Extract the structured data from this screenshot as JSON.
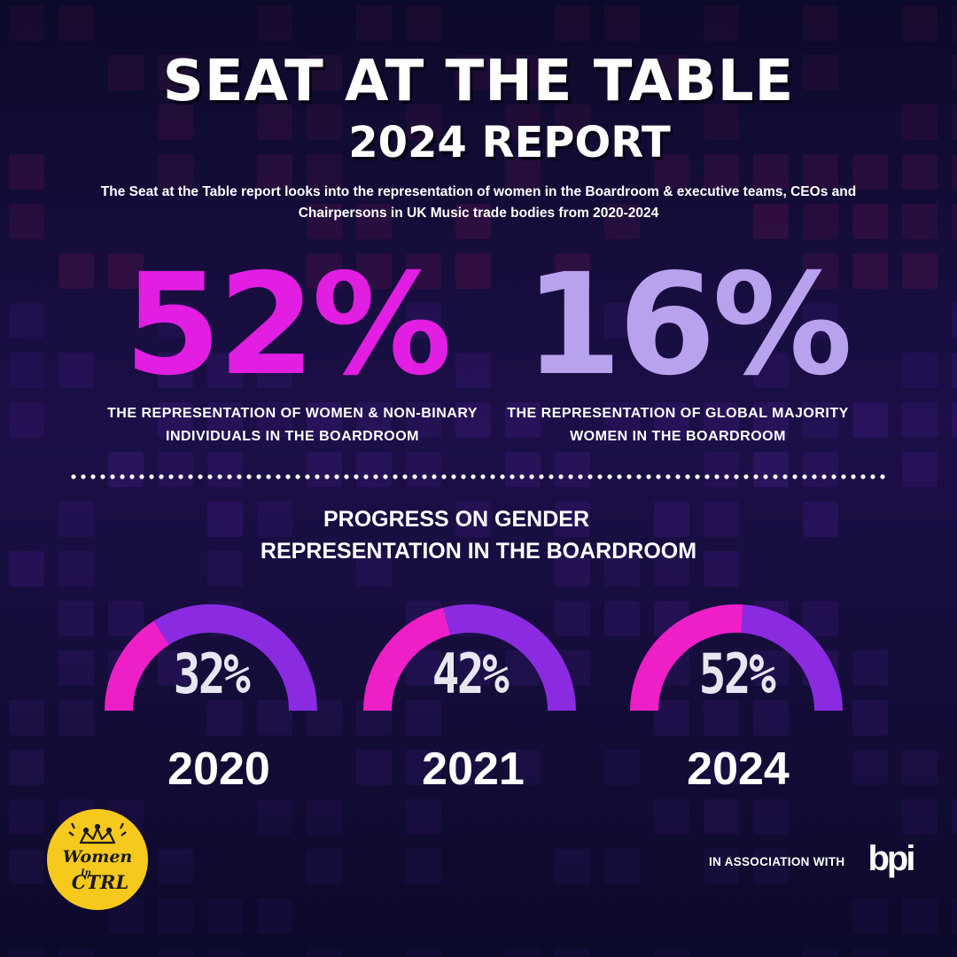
{
  "header": {
    "title": "SEAT AT THE TABLE",
    "subtitle": "2024 REPORT",
    "intro": "The Seat at the Table report looks into the representation of women in the Boardroom & executive teams, CEOs and Chairpersons in UK Music trade bodies from 2020-2024"
  },
  "stats": [
    {
      "value": "52%",
      "caption": "THE REPRESENTATION OF  WOMEN & NON-BINARY INDIVIDUALS IN THE BOARDROOM",
      "color": "#e11ee1"
    },
    {
      "value": "16%",
      "caption": "THE REPRESENTATION OF GLOBAL MAJORITY WOMEN IN THE BOARDROOM",
      "color": "#b8a2ee"
    }
  ],
  "progress": {
    "title_line1": "PROGRESS ON GENDER",
    "title_line2": "REPRESENTATION IN THE BOARDROOM",
    "gauges": [
      {
        "pct": "32%",
        "year": "2020",
        "fraction": 0.32
      },
      {
        "pct": "42%",
        "year": "2021",
        "fraction": 0.42
      },
      {
        "pct": "52%",
        "year": "2024",
        "fraction": 0.52
      }
    ],
    "colors": {
      "filled": "#ee1fc7",
      "rest": "#8a2be2"
    }
  },
  "footer": {
    "logo_text": "Women In CTRL",
    "logo_icon": "crown-icon",
    "association_text": "IN ASSOCIATION WITH",
    "partner_logo": "bpi"
  }
}
